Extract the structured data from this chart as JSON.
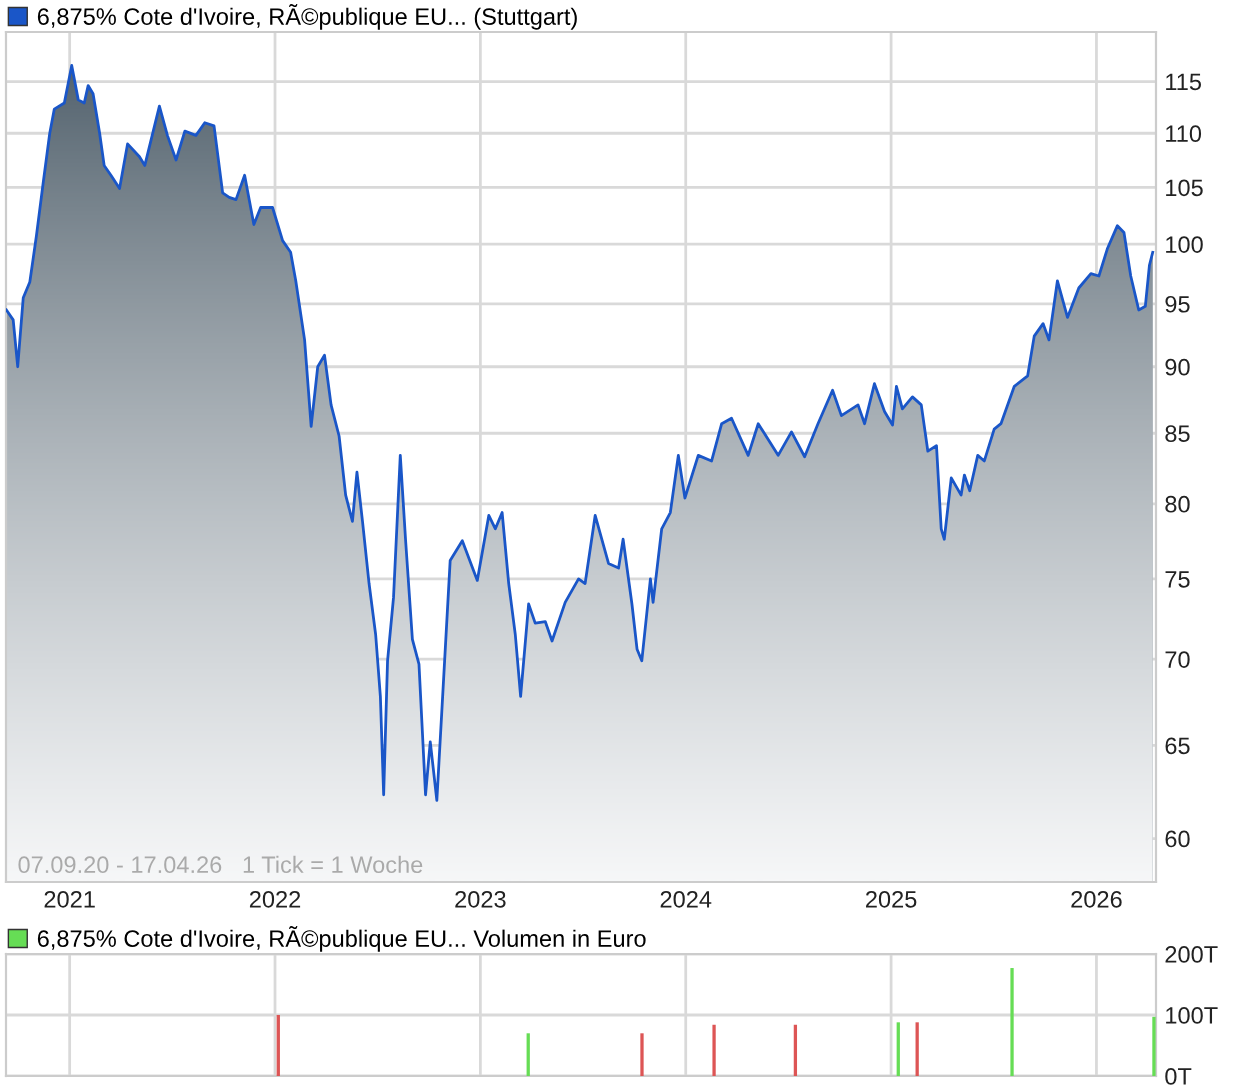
{
  "chart_data": [
    {
      "type": "area",
      "legend": "top left",
      "grid": true,
      "log": "y",
      "xlim": [
        2020.69,
        2026.29
      ],
      "xticks": [
        2021,
        2022,
        2023,
        2024,
        2025,
        2026
      ],
      "ylim": [
        57.8,
        120
      ],
      "yticks": [
        60,
        65,
        70,
        75,
        80,
        85,
        90,
        95,
        100,
        105,
        110,
        115
      ],
      "annotations": [
        "07.09.20 - 17.04.26   1 Tick = 1 Woche"
      ],
      "series": [
        {
          "name": "6,875% Cote d'Ivoire, RÃ©publique EU... (Stuttgart)",
          "color": "#1a56c8",
          "x": [
            2020.692,
            2020.725,
            2020.747,
            2020.774,
            2020.806,
            2020.838,
            2020.871,
            2020.903,
            2020.925,
            2020.974,
            2021.01,
            2021.042,
            2021.071,
            2021.09,
            2021.114,
            2021.146,
            2021.168,
            2021.201,
            2021.243,
            2021.282,
            2021.34,
            2021.366,
            2021.437,
            2021.476,
            2021.518,
            2021.561,
            2021.615,
            2021.658,
            2021.703,
            2021.745,
            2021.777,
            2021.81,
            2021.852,
            2021.897,
            2021.93,
            2021.988,
            2022.037,
            2022.076,
            2022.101,
            2022.144,
            2022.176,
            2022.208,
            2022.241,
            2022.273,
            2022.312,
            2022.344,
            2022.377,
            2022.399,
            2022.426,
            2022.458,
            2022.49,
            2022.513,
            2022.529,
            2022.548,
            2022.577,
            2022.61,
            2022.636,
            2022.669,
            2022.701,
            2022.733,
            2022.756,
            2022.788,
            2022.814,
            2022.853,
            2022.912,
            2022.985,
            2023.041,
            2023.073,
            2023.106,
            2023.138,
            2023.17,
            2023.196,
            2023.235,
            2023.267,
            2023.316,
            2023.349,
            2023.413,
            2023.478,
            2023.51,
            2023.559,
            2023.624,
            2023.673,
            2023.695,
            2023.738,
            2023.763,
            2023.786,
            2023.828,
            2023.841,
            2023.883,
            2023.925,
            2023.964,
            2023.996,
            2024.061,
            2024.126,
            2024.175,
            2024.223,
            2024.304,
            2024.353,
            2024.45,
            2024.515,
            2024.579,
            2024.644,
            2024.715,
            2024.758,
            2024.839,
            2024.871,
            2024.919,
            2024.968,
            2025.007,
            2025.026,
            2025.055,
            2025.104,
            2025.147,
            2025.179,
            2025.221,
            2025.244,
            2025.259,
            2025.293,
            2025.341,
            2025.357,
            2025.383,
            2025.422,
            2025.454,
            2025.502,
            2025.535,
            2025.6,
            2025.665,
            2025.697,
            2025.74,
            2025.769,
            2025.81,
            2025.859,
            2025.914,
            2025.973,
            2026.012,
            2026.053,
            2026.102,
            2026.134,
            2026.167,
            2026.206,
            2026.238,
            2026.258,
            2026.274
          ],
          "values": [
            94.5,
            93.7,
            90,
            95.5,
            96.8,
            100.7,
            105.4,
            110,
            112.3,
            112.9,
            116.6,
            113.2,
            112.9,
            114.6,
            113.8,
            110,
            107,
            106.1,
            104.9,
            109,
            107.8,
            107,
            112.6,
            109.8,
            107.5,
            110.2,
            109.8,
            111,
            110.7,
            104.5,
            104.1,
            103.9,
            106.1,
            101.7,
            103.2,
            103.2,
            100.3,
            99.3,
            96.9,
            92.1,
            85.5,
            90,
            90.9,
            87.1,
            84.8,
            80.6,
            78.8,
            82.2,
            78.8,
            74.7,
            71.5,
            67.8,
            62.3,
            69.9,
            73.8,
            83.4,
            77.5,
            71.2,
            69.7,
            62.3,
            65.2,
            62,
            67.3,
            76.2,
            77.5,
            74.9,
            79.2,
            78.3,
            79.4,
            74.7,
            71.5,
            67.8,
            73.4,
            72.2,
            72.3,
            71.1,
            73.5,
            75,
            74.7,
            79.2,
            76,
            75.7,
            77.6,
            73.4,
            70.6,
            69.9,
            75,
            73.5,
            78.3,
            79.4,
            83.4,
            80.4,
            83.4,
            83,
            85.7,
            86.1,
            83.4,
            85.7,
            83.4,
            85.1,
            83.3,
            85.7,
            88.2,
            86.3,
            87.1,
            85.7,
            88.7,
            86.6,
            85.6,
            88.5,
            86.8,
            87.7,
            87.1,
            83.7,
            84.1,
            78.3,
            77.6,
            81.8,
            80.6,
            82,
            80.9,
            83.4,
            83,
            85.3,
            85.7,
            88.5,
            89.3,
            92.4,
            93.4,
            92.1,
            96.9,
            93.9,
            96.3,
            97.5,
            97.3,
            99.6,
            101.6,
            101,
            97.3,
            94.5,
            94.8,
            98.2,
            99.3
          ]
        }
      ]
    },
    {
      "type": "bar",
      "legend": "top left",
      "grid": true,
      "tick_labels": "y",
      "xlim": [
        2020.69,
        2026.29
      ],
      "xticks": [
        2021,
        2022,
        2023,
        2024,
        2025,
        2026
      ],
      "ylim": [
        0,
        200
      ],
      "yticks": [
        {
          "value": 0,
          "label": "0T"
        },
        {
          "value": 100,
          "label": "100T"
        },
        {
          "value": 200,
          "label": "200T"
        }
      ],
      "series": [
        {
          "name": "6,875% Cote d'Ivoire, RÃ©publique EU... Volumen in Euro",
          "color": "#66dd55",
          "x": [
            2022.016,
            2023.233,
            2023.787,
            2024.138,
            2024.534,
            2025.035,
            2025.127,
            2025.589,
            2026.28
          ],
          "colors": [
            "#dd5555",
            "#66dd55",
            "#dd5555",
            "#dd5555",
            "#dd5555",
            "#66dd55",
            "#dd5555",
            "#66dd55",
            "#66dd55"
          ],
          "values": [
            100,
            70,
            70,
            84,
            84,
            88,
            88,
            177,
            97
          ]
        }
      ]
    }
  ]
}
